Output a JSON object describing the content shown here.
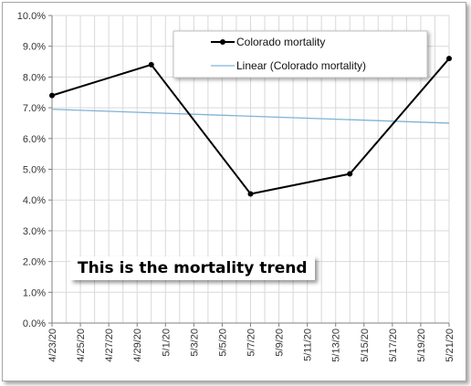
{
  "chart_data": {
    "type": "line",
    "title": "",
    "xlabel": "",
    "ylabel": "",
    "x_tick_labels": [
      "4/23/20",
      "4/25/20",
      "4/27/20",
      "4/29/20",
      "5/1/20",
      "5/3/20",
      "5/5/20",
      "5/7/20",
      "5/9/20",
      "5/11/20",
      "5/13/20",
      "5/15/20",
      "5/17/20",
      "5/19/20",
      "5/21/20"
    ],
    "y_tick_labels": [
      "0.0%",
      "1.0%",
      "2.0%",
      "3.0%",
      "4.0%",
      "5.0%",
      "6.0%",
      "7.0%",
      "8.0%",
      "9.0%",
      "10.0%"
    ],
    "ylim": [
      0,
      10
    ],
    "xlim": [
      "4/23/20",
      "5/21/20"
    ],
    "grid": true,
    "legend_position": "top-right",
    "series": [
      {
        "name": "Colorado mortality",
        "color": "#000000",
        "x": [
          "4/23/20",
          "4/30/20",
          "5/7/20",
          "5/14/20",
          "5/21/20"
        ],
        "values": [
          7.4,
          8.4,
          4.2,
          4.85,
          8.6
        ]
      },
      {
        "name": "Linear (Colorado mortality)",
        "color": "#7fb2d6",
        "x": [
          "4/23/20",
          "5/21/20"
        ],
        "values": [
          6.95,
          6.5
        ]
      }
    ],
    "annotation": "This is the mortality trend"
  }
}
